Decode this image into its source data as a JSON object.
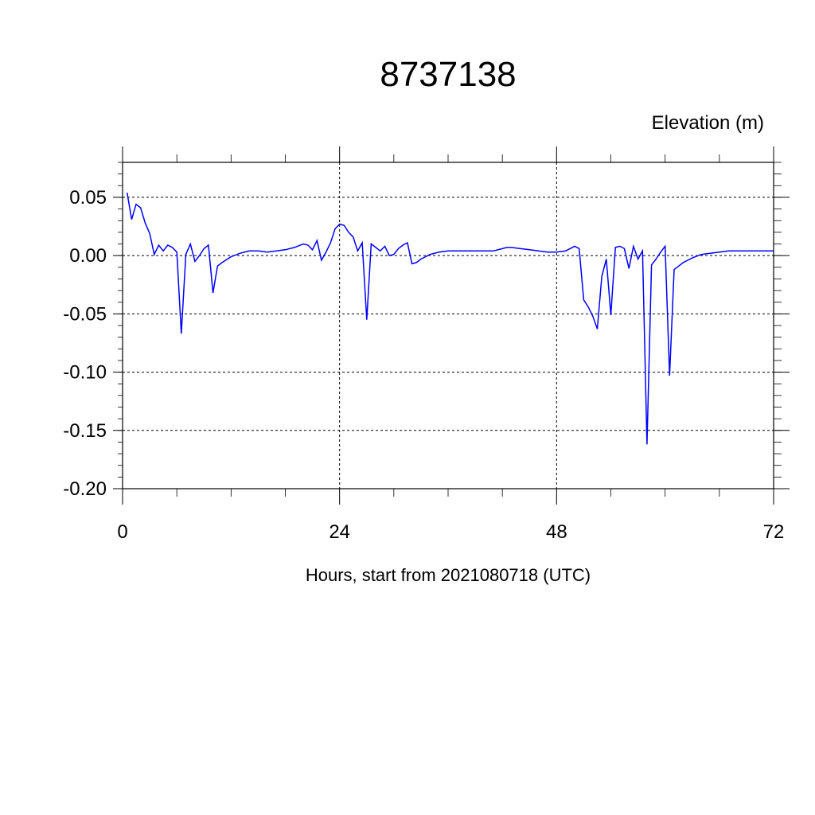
{
  "chart_data": {
    "type": "line",
    "title": "8737138",
    "ylabel": "Elevation (m)",
    "xlabel": "Hours, start from 2021080718 (UTC)",
    "xlim": [
      0,
      72
    ],
    "ylim": [
      -0.2,
      0.08
    ],
    "x_ticks": [
      0,
      24,
      48,
      72
    ],
    "x_tick_labels": [
      "0",
      "24",
      "48",
      "72"
    ],
    "y_ticks": [
      0.05,
      0.0,
      -0.05,
      -0.1,
      -0.15,
      -0.2
    ],
    "y_tick_labels": [
      "0.05",
      "0.00",
      "-0.05",
      "-0.10",
      "-0.15",
      "-0.20"
    ],
    "grid": true,
    "series": [
      {
        "color": "#0000ff",
        "x": [
          0.5,
          1.0,
          1.5,
          2.0,
          2.5,
          3.0,
          3.5,
          4.0,
          4.5,
          5.0,
          5.5,
          6.0,
          6.5,
          7.0,
          7.5,
          8.0,
          8.5,
          9.0,
          9.5,
          10.0,
          10.5,
          11.0,
          12.0,
          13.0,
          14.0,
          15.0,
          16.0,
          17.0,
          18.0,
          19.0,
          20.0,
          20.5,
          21.0,
          21.5,
          22.0,
          22.5,
          23.0,
          23.5,
          24.0,
          24.5,
          25.0,
          25.5,
          26.0,
          26.5,
          27.0,
          27.5,
          28.0,
          28.5,
          29.0,
          29.5,
          30.0,
          30.5,
          31.0,
          31.5,
          32.0,
          32.5,
          33.0,
          34.0,
          35.0,
          36.0,
          37.0,
          38.0,
          39.0,
          40.0,
          41.0,
          42.0,
          42.5,
          43.0,
          44.0,
          45.0,
          46.0,
          47.0,
          48.0,
          49.0,
          50.0,
          50.5,
          51.0,
          51.5,
          52.0,
          52.5,
          53.0,
          53.5,
          54.0,
          54.5,
          55.0,
          55.5,
          56.0,
          56.5,
          57.0,
          57.5,
          58.0,
          58.5,
          59.0,
          59.5,
          60.0,
          60.5,
          61.0,
          61.5,
          62.0,
          62.5,
          63.0,
          64.0,
          65.0,
          66.0,
          67.0,
          68.0,
          69.0,
          70.0,
          71.0,
          72.0
        ],
        "y": [
          0.054,
          0.031,
          0.044,
          0.041,
          0.028,
          0.019,
          0.001,
          0.009,
          0.004,
          0.009,
          0.007,
          0.003,
          -0.067,
          0.001,
          0.01,
          -0.005,
          0.0,
          0.006,
          0.009,
          -0.032,
          -0.009,
          -0.006,
          -0.001,
          0.002,
          0.004,
          0.004,
          0.003,
          0.004,
          0.005,
          0.007,
          0.01,
          0.009,
          0.005,
          0.013,
          -0.004,
          0.003,
          0.011,
          0.023,
          0.027,
          0.026,
          0.02,
          0.016,
          0.004,
          0.011,
          -0.055,
          0.01,
          0.007,
          0.004,
          0.008,
          0.0,
          0.001,
          0.006,
          0.009,
          0.011,
          -0.007,
          -0.006,
          -0.003,
          0.001,
          0.003,
          0.004,
          0.004,
          0.004,
          0.004,
          0.004,
          0.004,
          0.006,
          0.007,
          0.007,
          0.006,
          0.005,
          0.004,
          0.003,
          0.003,
          0.004,
          0.008,
          0.006,
          -0.038,
          -0.044,
          -0.052,
          -0.063,
          -0.018,
          -0.003,
          -0.051,
          0.007,
          0.008,
          0.006,
          -0.011,
          0.008,
          -0.003,
          0.004,
          -0.162,
          -0.008,
          -0.003,
          0.003,
          0.008,
          -0.103,
          -0.012,
          -0.009,
          -0.006,
          -0.004,
          -0.002,
          0.001,
          0.002,
          0.003,
          0.004,
          0.004,
          0.004,
          0.004,
          0.004,
          0.004
        ]
      }
    ]
  }
}
